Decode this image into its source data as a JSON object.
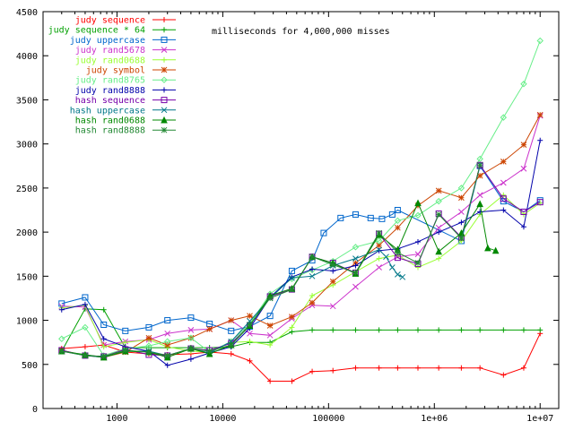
{
  "chart_data": {
    "type": "line",
    "title": "milliseconds for 4,000,000 misses",
    "xscale": "log",
    "xlim": [
      200,
      15000000
    ],
    "ylim": [
      0,
      4500
    ],
    "grid": false,
    "legend": "top-left",
    "x_ticks": [
      {
        "value": 1000,
        "label": "1000"
      },
      {
        "value": 10000,
        "label": "10000"
      },
      {
        "value": 100000,
        "label": "100000"
      },
      {
        "value": 1000000,
        "label": "1e+06"
      },
      {
        "value": 10000000,
        "label": "1e+07"
      }
    ],
    "y_ticks": [
      {
        "value": 0,
        "label": "0"
      },
      {
        "value": 500,
        "label": "500"
      },
      {
        "value": 1000,
        "label": "1000"
      },
      {
        "value": 1500,
        "label": "1500"
      },
      {
        "value": 2000,
        "label": "2000"
      },
      {
        "value": 2500,
        "label": "2500"
      },
      {
        "value": 3000,
        "label": "3000"
      },
      {
        "value": 3500,
        "label": "3500"
      },
      {
        "value": 4000,
        "label": "4000"
      },
      {
        "value": 4500,
        "label": "4500"
      }
    ],
    "series": [
      {
        "name": "judy sequence",
        "color": "#ff0000",
        "marker": "plus",
        "points": [
          [
            300,
            680
          ],
          [
            500,
            700
          ],
          [
            750,
            720
          ],
          [
            1200,
            640
          ],
          [
            2000,
            620
          ],
          [
            3000,
            610
          ],
          [
            5000,
            620
          ],
          [
            7500,
            640
          ],
          [
            12000,
            620
          ],
          [
            18000,
            540
          ],
          [
            28000,
            310
          ],
          [
            45000,
            310
          ],
          [
            70000,
            420
          ],
          [
            110000,
            430
          ],
          [
            180000,
            460
          ],
          [
            300000,
            460
          ],
          [
            450000,
            460
          ],
          [
            700000,
            460
          ],
          [
            1100000,
            460
          ],
          [
            1800000,
            460
          ],
          [
            2700000,
            460
          ],
          [
            4500000,
            380
          ],
          [
            7000000,
            460
          ],
          [
            10000000,
            850
          ]
        ]
      },
      {
        "name": "judy sequence * 64",
        "color": "#00a000",
        "marker": "plus",
        "points": [
          [
            300,
            650
          ],
          [
            500,
            1130
          ],
          [
            750,
            1120
          ],
          [
            1200,
            690
          ],
          [
            2000,
            690
          ],
          [
            3000,
            690
          ],
          [
            5000,
            690
          ],
          [
            7500,
            690
          ],
          [
            12000,
            700
          ],
          [
            18000,
            750
          ],
          [
            28000,
            750
          ],
          [
            45000,
            870
          ],
          [
            70000,
            890
          ],
          [
            110000,
            890
          ],
          [
            180000,
            890
          ],
          [
            300000,
            890
          ],
          [
            450000,
            890
          ],
          [
            700000,
            890
          ],
          [
            1100000,
            890
          ],
          [
            1800000,
            890
          ],
          [
            2700000,
            890
          ],
          [
            4500000,
            890
          ],
          [
            7000000,
            890
          ],
          [
            10000000,
            890
          ]
        ]
      },
      {
        "name": "judy uppercase",
        "color": "#0066cc",
        "marker": "square",
        "points": [
          [
            300,
            1190
          ],
          [
            500,
            1260
          ],
          [
            750,
            950
          ],
          [
            1200,
            880
          ],
          [
            2000,
            920
          ],
          [
            3000,
            1000
          ],
          [
            5000,
            1030
          ],
          [
            7500,
            960
          ],
          [
            12000,
            880
          ],
          [
            18000,
            930
          ],
          [
            28000,
            1050
          ],
          [
            45000,
            1560
          ],
          [
            70000,
            1680
          ],
          [
            90000,
            1990
          ],
          [
            130000,
            2160
          ],
          [
            180000,
            2200
          ],
          [
            250000,
            2160
          ],
          [
            320000,
            2150
          ],
          [
            400000,
            2200
          ],
          [
            450000,
            2250
          ],
          [
            1800000,
            1900
          ],
          [
            2700000,
            2750
          ],
          [
            4500000,
            2350
          ],
          [
            7000000,
            2230
          ],
          [
            10000000,
            2360
          ]
        ]
      },
      {
        "name": "judy rand5678",
        "color": "#cc33cc",
        "marker": "x",
        "points": [
          [
            300,
            1160
          ],
          [
            500,
            1150
          ],
          [
            750,
            720
          ],
          [
            1200,
            760
          ],
          [
            2000,
            780
          ],
          [
            3000,
            850
          ],
          [
            5000,
            890
          ],
          [
            7500,
            900
          ],
          [
            12000,
            1000
          ],
          [
            18000,
            850
          ],
          [
            28000,
            830
          ],
          [
            45000,
            1020
          ],
          [
            70000,
            1170
          ],
          [
            110000,
            1160
          ],
          [
            180000,
            1380
          ],
          [
            300000,
            1600
          ],
          [
            450000,
            1720
          ],
          [
            700000,
            1750
          ],
          [
            1100000,
            2050
          ],
          [
            1800000,
            2230
          ],
          [
            2700000,
            2420
          ],
          [
            4500000,
            2560
          ],
          [
            7000000,
            2720
          ],
          [
            10000000,
            3320
          ]
        ]
      },
      {
        "name": "judy rand0688",
        "color": "#99ff33",
        "marker": "plus",
        "points": [
          [
            300,
            1140
          ],
          [
            500,
            1170
          ],
          [
            750,
            700
          ],
          [
            1200,
            750
          ],
          [
            2000,
            780
          ],
          [
            3000,
            700
          ],
          [
            5000,
            650
          ],
          [
            7500,
            640
          ],
          [
            12000,
            750
          ],
          [
            18000,
            760
          ],
          [
            28000,
            720
          ],
          [
            45000,
            920
          ],
          [
            70000,
            1280
          ],
          [
            110000,
            1400
          ],
          [
            180000,
            1550
          ],
          [
            300000,
            1700
          ],
          [
            450000,
            1740
          ],
          [
            700000,
            1600
          ],
          [
            1100000,
            1700
          ],
          [
            1800000,
            1900
          ],
          [
            2700000,
            2200
          ],
          [
            4500000,
            2420
          ],
          [
            7000000,
            2200
          ],
          [
            10000000,
            2330
          ]
        ]
      },
      {
        "name": "judy symbol",
        "color": "#cc4400",
        "marker": "star",
        "points": [
          [
            300,
            660
          ],
          [
            500,
            600
          ],
          [
            750,
            580
          ],
          [
            1200,
            640
          ],
          [
            2000,
            800
          ],
          [
            3000,
            720
          ],
          [
            5000,
            800
          ],
          [
            7500,
            900
          ],
          [
            12000,
            1000
          ],
          [
            18000,
            1050
          ],
          [
            28000,
            940
          ],
          [
            45000,
            1040
          ],
          [
            70000,
            1200
          ],
          [
            110000,
            1440
          ],
          [
            180000,
            1650
          ],
          [
            300000,
            1850
          ],
          [
            450000,
            2050
          ],
          [
            700000,
            2300
          ],
          [
            1100000,
            2470
          ],
          [
            1800000,
            2390
          ],
          [
            2700000,
            2640
          ],
          [
            4500000,
            2800
          ],
          [
            7000000,
            2990
          ],
          [
            10000000,
            3330
          ]
        ]
      },
      {
        "name": "judy rand8765",
        "color": "#66ee88",
        "marker": "diamond",
        "points": [
          [
            300,
            790
          ],
          [
            500,
            920
          ],
          [
            750,
            600
          ],
          [
            1200,
            680
          ],
          [
            2000,
            710
          ],
          [
            3000,
            760
          ],
          [
            5000,
            800
          ],
          [
            7500,
            640
          ],
          [
            12000,
            760
          ],
          [
            18000,
            960
          ],
          [
            28000,
            1300
          ],
          [
            45000,
            1470
          ],
          [
            70000,
            1570
          ],
          [
            110000,
            1670
          ],
          [
            180000,
            1830
          ],
          [
            300000,
            1900
          ],
          [
            450000,
            2130
          ],
          [
            700000,
            2190
          ],
          [
            1100000,
            2350
          ],
          [
            1800000,
            2500
          ],
          [
            2700000,
            2830
          ],
          [
            4500000,
            3300
          ],
          [
            7000000,
            3680
          ],
          [
            10000000,
            4170
          ]
        ]
      },
      {
        "name": "judy rand8888",
        "color": "#0000aa",
        "marker": "plus",
        "points": [
          [
            300,
            1120
          ],
          [
            500,
            1180
          ],
          [
            750,
            790
          ],
          [
            1200,
            700
          ],
          [
            2000,
            650
          ],
          [
            3000,
            490
          ],
          [
            5000,
            560
          ],
          [
            7500,
            630
          ],
          [
            12000,
            700
          ],
          [
            18000,
            910
          ],
          [
            28000,
            1260
          ],
          [
            45000,
            1490
          ],
          [
            70000,
            1580
          ],
          [
            110000,
            1560
          ],
          [
            180000,
            1620
          ],
          [
            300000,
            1790
          ],
          [
            450000,
            1810
          ],
          [
            700000,
            1890
          ],
          [
            1100000,
            2000
          ],
          [
            1800000,
            2110
          ],
          [
            2700000,
            2230
          ],
          [
            4500000,
            2250
          ],
          [
            7000000,
            2060
          ],
          [
            10000000,
            3040
          ]
        ]
      },
      {
        "name": "hash sequence",
        "color": "#7700aa",
        "marker": "square",
        "points": [
          [
            300,
            660
          ],
          [
            500,
            600
          ],
          [
            750,
            590
          ],
          [
            1200,
            670
          ],
          [
            2000,
            610
          ],
          [
            3000,
            600
          ],
          [
            5000,
            680
          ],
          [
            7500,
            660
          ],
          [
            12000,
            740
          ],
          [
            18000,
            940
          ],
          [
            28000,
            1270
          ],
          [
            45000,
            1350
          ],
          [
            70000,
            1720
          ],
          [
            110000,
            1650
          ],
          [
            180000,
            1540
          ],
          [
            300000,
            1980
          ],
          [
            450000,
            1710
          ],
          [
            700000,
            1640
          ],
          [
            1100000,
            2210
          ],
          [
            1800000,
            1940
          ],
          [
            2700000,
            2760
          ],
          [
            4500000,
            2380
          ],
          [
            7000000,
            2230
          ],
          [
            10000000,
            2340
          ]
        ]
      },
      {
        "name": "hash uppercase",
        "color": "#007788",
        "marker": "x",
        "points": [
          [
            300,
            650
          ],
          [
            500,
            600
          ],
          [
            750,
            580
          ],
          [
            1200,
            650
          ],
          [
            2000,
            650
          ],
          [
            3000,
            600
          ],
          [
            5000,
            680
          ],
          [
            7500,
            630
          ],
          [
            12000,
            760
          ],
          [
            18000,
            990
          ],
          [
            28000,
            1250
          ],
          [
            45000,
            1480
          ],
          [
            70000,
            1500
          ],
          [
            110000,
            1620
          ],
          [
            180000,
            1700
          ],
          [
            300000,
            1800
          ],
          [
            350000,
            1720
          ],
          [
            400000,
            1600
          ],
          [
            450000,
            1520
          ],
          [
            500000,
            1490
          ]
        ]
      },
      {
        "name": "hash rand0688",
        "color": "#008800",
        "marker": "triangle",
        "points": [
          [
            300,
            650
          ],
          [
            500,
            610
          ],
          [
            750,
            580
          ],
          [
            1200,
            650
          ],
          [
            2000,
            640
          ],
          [
            3000,
            580
          ],
          [
            5000,
            680
          ],
          [
            7500,
            620
          ],
          [
            12000,
            720
          ],
          [
            18000,
            940
          ],
          [
            28000,
            1280
          ],
          [
            45000,
            1360
          ],
          [
            70000,
            1720
          ],
          [
            110000,
            1650
          ],
          [
            180000,
            1530
          ],
          [
            300000,
            1970
          ],
          [
            450000,
            1800
          ],
          [
            700000,
            2330
          ],
          [
            1100000,
            1780
          ],
          [
            1800000,
            1990
          ],
          [
            2700000,
            2320
          ],
          [
            3200000,
            1820
          ],
          [
            3800000,
            1790
          ]
        ]
      },
      {
        "name": "hash rand8888",
        "color": "#228833",
        "marker": "star",
        "points": [
          [
            300,
            650
          ],
          [
            500,
            600
          ],
          [
            750,
            590
          ],
          [
            1200,
            660
          ],
          [
            2000,
            640
          ],
          [
            3000,
            600
          ],
          [
            5000,
            680
          ],
          [
            7500,
            650
          ],
          [
            12000,
            720
          ],
          [
            18000,
            950
          ],
          [
            28000,
            1250
          ],
          [
            45000,
            1350
          ],
          [
            70000,
            1720
          ],
          [
            110000,
            1630
          ],
          [
            180000,
            1540
          ],
          [
            300000,
            1990
          ],
          [
            450000,
            1770
          ],
          [
            700000,
            1650
          ],
          [
            1100000,
            2200
          ],
          [
            1800000,
            1930
          ],
          [
            2700000,
            2760
          ]
        ]
      }
    ]
  }
}
